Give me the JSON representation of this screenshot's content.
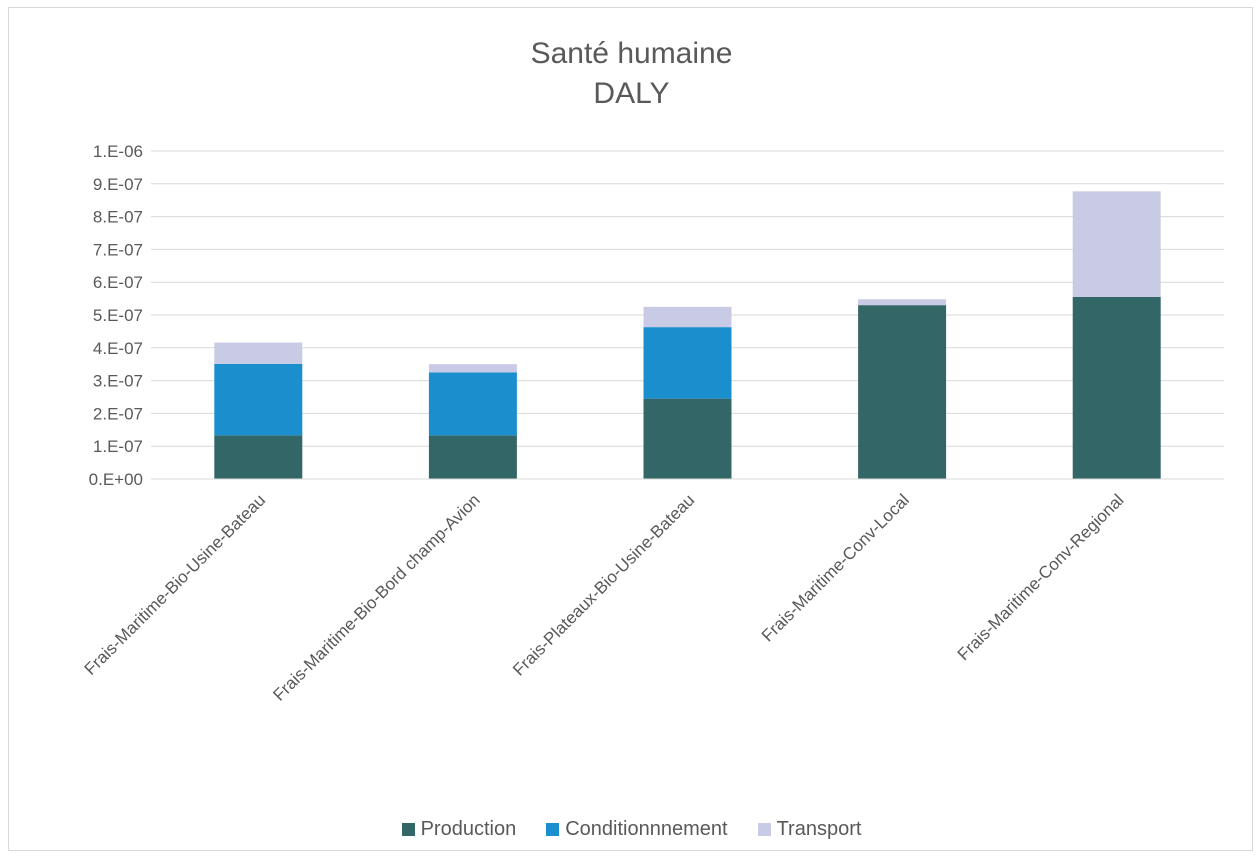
{
  "chart_data": {
    "type": "bar",
    "stacked": true,
    "title": [
      "Santé humaine",
      "DALY"
    ],
    "categories": [
      "Frais-Maritime-Bio-Usine-Bateau",
      "Frais-Maritime-Bio-Bord champ-Avion",
      "Frais-Plateaux-Bio-Usine-Bateau",
      "Frais-Maritime-Conv-Local",
      "Frais-Maritime-Conv-Regional"
    ],
    "series": [
      {
        "name": "Production",
        "color": "#336666",
        "values": [
          1.33e-07,
          1.33e-07,
          2.45e-07,
          5.3e-07,
          5.55e-07
        ]
      },
      {
        "name": "Conditionnnement",
        "color": "#1b8fce",
        "values": [
          2.18e-07,
          1.92e-07,
          2.18e-07,
          0,
          0
        ]
      },
      {
        "name": "Transport",
        "color": "#c8cae6",
        "values": [
          6.5e-08,
          2.5e-08,
          6.2e-08,
          1.8e-08,
          3.22e-07
        ]
      }
    ],
    "ylim": [
      0,
      1e-06
    ],
    "yticks": [
      "0.E+00",
      "1.E-07",
      "2.E-07",
      "3.E-07",
      "4.E-07",
      "5.E-07",
      "6.E-07",
      "7.E-07",
      "8.E-07",
      "9.E-07",
      "1.E-06"
    ],
    "grid": true,
    "legend_position": "bottom"
  }
}
